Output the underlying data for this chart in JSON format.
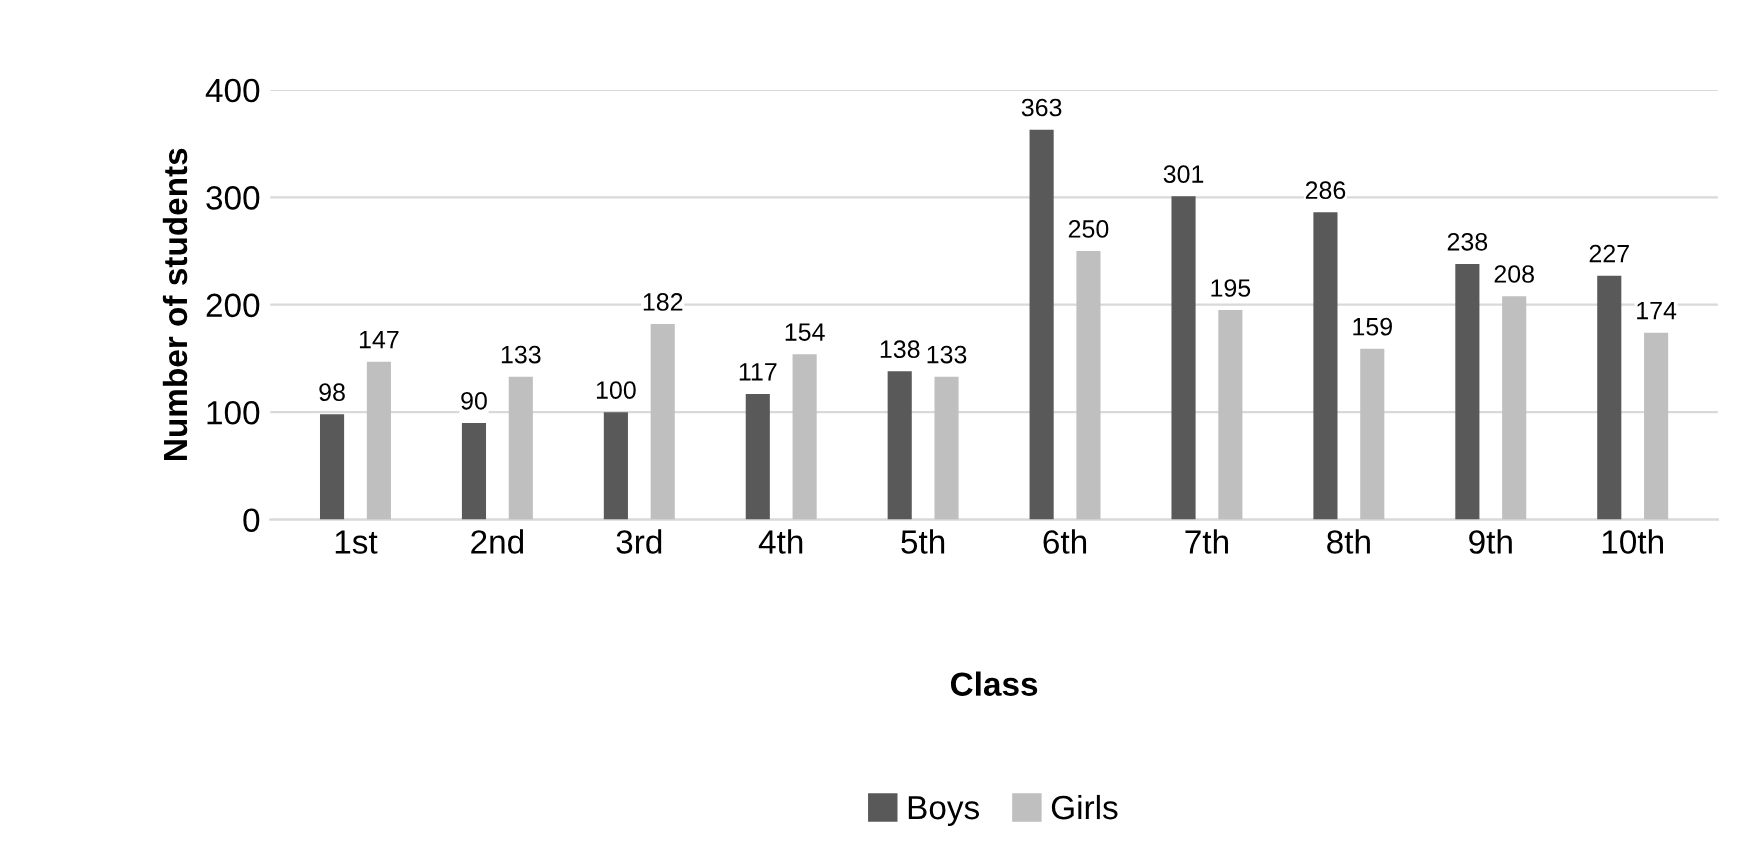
{
  "chart_data": {
    "type": "bar",
    "xlabel": "Class",
    "ylabel": "Number of students",
    "categories": [
      "1st",
      "2nd",
      "3rd",
      "4th",
      "5th",
      "6th",
      "7th",
      "8th",
      "9th",
      "10th"
    ],
    "series": [
      {
        "name": "Boys",
        "color": "#595959",
        "values": [
          98,
          90,
          100,
          117,
          138,
          363,
          301,
          286,
          238,
          227
        ]
      },
      {
        "name": "Girls",
        "color": "#bfbfbf",
        "values": [
          147,
          133,
          182,
          154,
          133,
          250,
          195,
          159,
          208,
          174
        ]
      }
    ],
    "ylim": [
      0,
      400
    ],
    "yticks": [
      0,
      100,
      200,
      300,
      400
    ],
    "grid": "y",
    "legend": "bottom",
    "data_labels": true
  }
}
